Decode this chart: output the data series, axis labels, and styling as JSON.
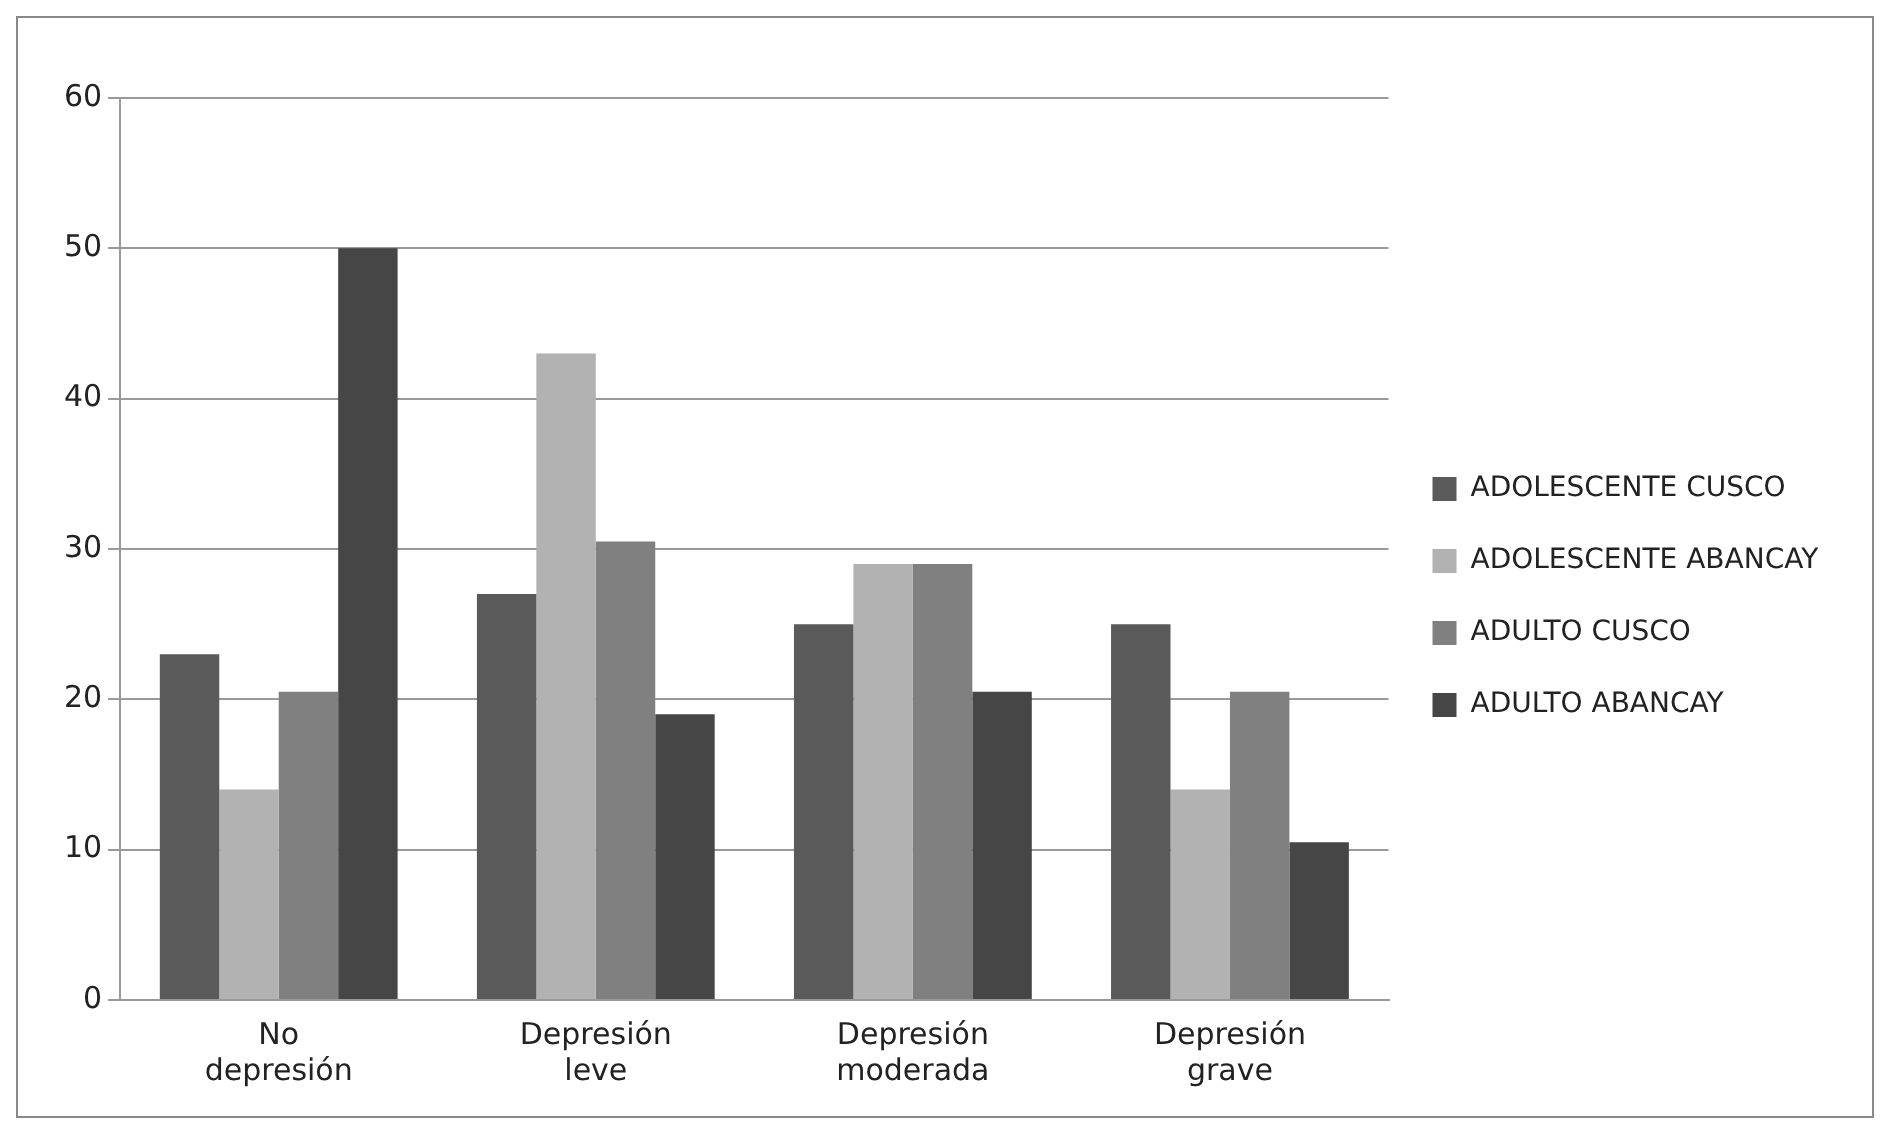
{
  "chart_data": {
    "type": "bar",
    "categories": [
      "No depresión",
      "Depresión leve",
      "Depresión moderada",
      "Depresión grave"
    ],
    "series": [
      {
        "name": "ADOLESCENTE CUSCO",
        "color": "#5a5a5a",
        "values": [
          23,
          27,
          25,
          25
        ]
      },
      {
        "name": "ADOLESCENTE ABANCAY",
        "color": "#b2b2b2",
        "values": [
          14,
          43,
          29,
          14
        ]
      },
      {
        "name": "ADULTO CUSCO",
        "color": "#808080",
        "values": [
          20.5,
          30.5,
          29,
          20.5
        ]
      },
      {
        "name": "ADULTO ABANCAY",
        "color": "#464646",
        "values": [
          50,
          19,
          20.5,
          10.5
        ]
      }
    ],
    "ylim": [
      0,
      60
    ],
    "yticks": [
      0,
      10,
      20,
      30,
      40,
      50,
      60
    ],
    "grid": "y",
    "legend": "right"
  }
}
